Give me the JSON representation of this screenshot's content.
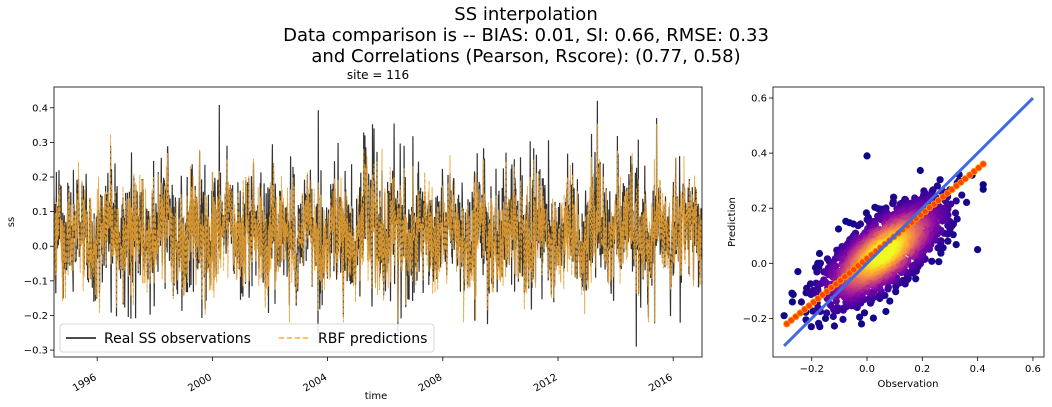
{
  "suptitle": {
    "line1": "SS interpolation",
    "line2": "Data comparison is   --   BIAS: 0.01, SI: 0.66, RMSE: 0.33",
    "line3": "and Correlations (Pearson, Rscore): (0.77, 0.58)"
  },
  "chart_data": [
    {
      "type": "line",
      "title": "site = 116",
      "xlabel": "time",
      "ylabel": "ss",
      "x_range": [
        "1994-07",
        "2017-01"
      ],
      "xlim": [
        1994.5,
        2017.0
      ],
      "ylim": [
        -0.32,
        0.46
      ],
      "x_ticks": [
        "1996",
        "2000",
        "2004",
        "2008",
        "2012",
        "2016"
      ],
      "y_ticks": [
        -0.3,
        -0.2,
        -0.1,
        0.0,
        0.1,
        0.2,
        0.3,
        0.4
      ],
      "y_tick_labels": [
        "−0.3",
        "−0.2",
        "−0.1",
        "0.0",
        "0.1",
        "0.2",
        "0.3",
        "0.4"
      ],
      "legend_position": "lower-left",
      "series": [
        {
          "name": "Real SS observations",
          "color": "#333333",
          "style": "solid",
          "summary": {
            "min": -0.29,
            "max": 0.42,
            "typical_range": [
              -0.12,
              0.2
            ]
          }
        },
        {
          "name": "RBF predictions",
          "color": "#FFB74D",
          "style": "dashed",
          "summary": {
            "min": -0.22,
            "max": 0.42,
            "typical_range": [
              -0.08,
              0.18
            ]
          }
        }
      ]
    },
    {
      "type": "scatter",
      "title": "",
      "xlabel": "Observation",
      "ylabel": "Prediction",
      "xlim": [
        -0.34,
        0.64
      ],
      "ylim": [
        -0.34,
        0.64
      ],
      "x_ticks": [
        -0.2,
        0.0,
        0.2,
        0.4,
        0.6
      ],
      "x_tick_labels": [
        "−0.2",
        "0.0",
        "0.2",
        "0.4",
        "0.6"
      ],
      "y_ticks": [
        -0.2,
        0.0,
        0.2,
        0.4,
        0.6
      ],
      "y_tick_labels": [
        "−0.2",
        "0.0",
        "0.2",
        "0.4",
        "0.6"
      ],
      "colormap": "plasma (density)",
      "identity_line": {
        "x": [
          -0.3,
          0.6
        ],
        "y": [
          -0.3,
          0.6
        ],
        "color": "#4169E1"
      },
      "point_cloud": {
        "x_range": [
          -0.29,
          0.42
        ],
        "y_range": [
          -0.23,
          0.43
        ],
        "pearson": 0.77
      },
      "outlier_points": [
        {
          "x": 0.0,
          "y": 0.39
        },
        {
          "x": -0.25,
          "y": -0.03
        },
        {
          "x": -0.3,
          "y": -0.19
        },
        {
          "x": -0.27,
          "y": -0.14
        },
        {
          "x": -0.02,
          "y": -0.22
        },
        {
          "x": 0.4,
          "y": 0.05
        },
        {
          "x": 0.27,
          "y": 0.26
        },
        {
          "x": 0.38,
          "y": 0.32
        },
        {
          "x": -0.15,
          "y": -0.2
        }
      ],
      "fit_points": {
        "x": [
          -0.29,
          0.42
        ],
        "y": [
          -0.22,
          0.36
        ],
        "color": "#FF4500"
      }
    }
  ]
}
